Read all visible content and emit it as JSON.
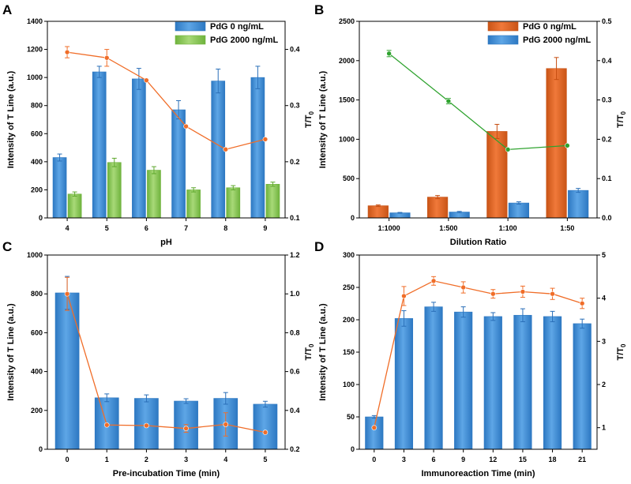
{
  "colors": {
    "blue_bar": "#5ea6e6",
    "blue_bar_dark": "#2d78c2",
    "green_bar": "#a8d978",
    "green_bar_dark": "#6fb33d",
    "orange_bar": "#f0793a",
    "orange_bar_dark": "#c95416",
    "orange_line": "#f06d28",
    "green_line": "#2fa32f",
    "error_blue": "#2a6fb8",
    "error_green": "#5fa82e",
    "error_orange": "#c64d10"
  },
  "chart_data": [
    {
      "panel": "A",
      "type": "bar",
      "xlabel": "pH",
      "ylabel": "Intensity of T Line (a.u.)",
      "y2label_main": "T/T",
      "y2label_sub": "0",
      "categories": [
        "4",
        "5",
        "6",
        "7",
        "8",
        "9"
      ],
      "ylim": [
        0,
        1400
      ],
      "yticks": [
        0,
        200,
        400,
        600,
        800,
        1000,
        1200,
        1400
      ],
      "y2lim": [
        0.1,
        0.45
      ],
      "y2ticks": [
        0.1,
        0.2,
        0.3,
        0.4
      ],
      "legend_position": "top-right",
      "series": [
        {
          "name": "PdG 0 ng/mL",
          "color_key": "blue",
          "values": [
            430,
            1040,
            990,
            770,
            975,
            1000
          ],
          "errors": [
            25,
            40,
            75,
            65,
            85,
            80
          ]
        },
        {
          "name": "PdG 2000 ng/mL",
          "color_key": "green",
          "values": [
            170,
            395,
            340,
            200,
            215,
            240
          ],
          "errors": [
            15,
            30,
            25,
            15,
            15,
            15
          ]
        }
      ],
      "line": {
        "name": "T/T0",
        "color_key": "orange",
        "values": [
          0.395,
          0.385,
          0.345,
          0.263,
          0.222,
          0.24
        ],
        "errors": [
          0.01,
          0.015,
          0,
          0,
          0,
          0
        ]
      },
      "legend": [
        "PdG 0 ng/mL",
        "PdG 2000 ng/mL"
      ]
    },
    {
      "panel": "B",
      "type": "bar",
      "xlabel": "Dilution Ratio",
      "ylabel": "Intensity of T Line (a.u.)",
      "y2label_main": "T/T",
      "y2label_sub": "0",
      "categories": [
        "1:1000",
        "1:500",
        "1:100",
        "1:50"
      ],
      "ylim": [
        0,
        2500
      ],
      "yticks": [
        0,
        500,
        1000,
        1500,
        2000,
        2500
      ],
      "y2lim": [
        0.0,
        0.5
      ],
      "y2ticks": [
        0.0,
        0.1,
        0.2,
        0.3,
        0.4,
        0.5
      ],
      "legend_position": "top-left",
      "series": [
        {
          "name": "PdG 0 ng/mL",
          "color_key": "orange",
          "values": [
            155,
            265,
            1100,
            1900
          ],
          "errors": [
            10,
            20,
            90,
            140
          ]
        },
        {
          "name": "PdG 2000 ng/mL",
          "color_key": "blue",
          "values": [
            65,
            75,
            190,
            350
          ],
          "errors": [
            5,
            8,
            15,
            25
          ]
        }
      ],
      "line": {
        "name": "T/T0",
        "color_key": "green",
        "values": [
          0.418,
          0.297,
          0.174,
          0.184
        ],
        "errors": [
          0.008,
          0.007,
          0,
          0
        ]
      },
      "legend": [
        "PdG 0 ng/mL",
        "PdG 2000 ng/mL"
      ]
    },
    {
      "panel": "C",
      "type": "bar",
      "xlabel": "Pre-incubation Time (min)",
      "ylabel": "Intensity of T Line (a.u.)",
      "y2label_main": "T/T",
      "y2label_sub": "0",
      "categories": [
        "0",
        "1",
        "2",
        "3",
        "4",
        "5"
      ],
      "ylim": [
        0,
        1000
      ],
      "yticks": [
        0,
        200,
        400,
        600,
        800,
        1000
      ],
      "y2lim": [
        0.2,
        1.2
      ],
      "y2ticks": [
        0.2,
        0.4,
        0.6,
        0.8,
        1.0,
        1.2
      ],
      "series": [
        {
          "name": "T Line",
          "color_key": "blue",
          "values": [
            805,
            265,
            262,
            248,
            262,
            232
          ],
          "errors": [
            85,
            20,
            18,
            12,
            30,
            15
          ]
        }
      ],
      "line": {
        "name": "T/T0",
        "color_key": "orange",
        "values": [
          1.0,
          0.325,
          0.322,
          0.307,
          0.328,
          0.287
        ],
        "errors": [
          0.085,
          0,
          0,
          0.02,
          0.06,
          0
        ]
      }
    },
    {
      "panel": "D",
      "type": "bar",
      "xlabel": "Immunoreaction Time (min)",
      "ylabel": "Intensity of T Line (a.u.)",
      "y2label_main": "T/T",
      "y2label_sub": "0",
      "categories": [
        "0",
        "3",
        "6",
        "9",
        "12",
        "15",
        "18",
        "21"
      ],
      "ylim": [
        0,
        300
      ],
      "yticks": [
        0,
        50,
        100,
        150,
        200,
        250,
        300
      ],
      "y2lim": [
        0.5,
        5.0
      ],
      "y2ticks": [
        1,
        2,
        3,
        4,
        5
      ],
      "series": [
        {
          "name": "T Line",
          "color_key": "blue",
          "values": [
            50,
            202,
            220,
            212,
            205,
            207,
            205,
            194
          ],
          "errors": [
            2,
            12,
            7,
            8,
            6,
            10,
            8,
            7
          ]
        }
      ],
      "line": {
        "name": "T/T0",
        "color_key": "orange",
        "values": [
          1.0,
          4.05,
          4.4,
          4.25,
          4.1,
          4.15,
          4.1,
          3.88
        ],
        "errors": [
          0,
          0.22,
          0.1,
          0.13,
          0.1,
          0.13,
          0.13,
          0.12
        ]
      }
    }
  ]
}
